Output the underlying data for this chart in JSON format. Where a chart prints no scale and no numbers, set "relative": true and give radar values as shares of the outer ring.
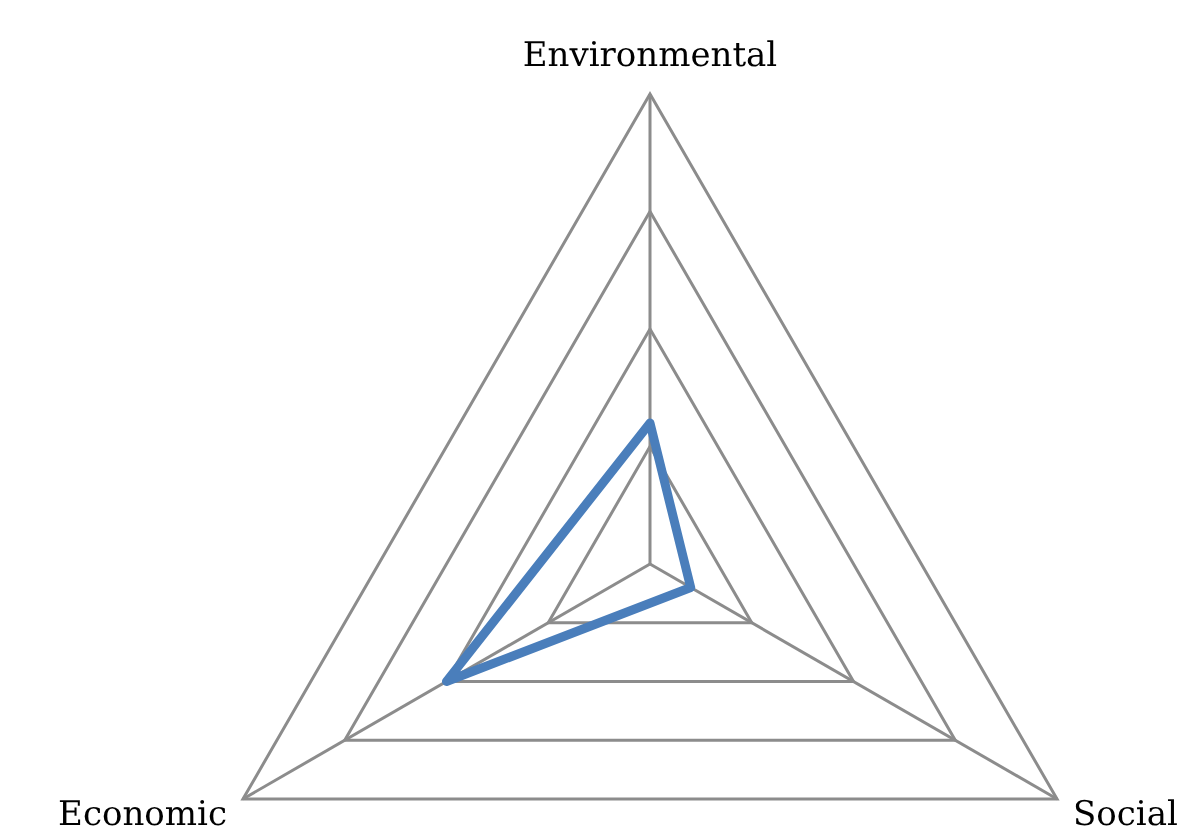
{
  "chart_data": {
    "type": "radar",
    "relative": true,
    "categories": [
      "Environmental",
      "Social",
      "Economic"
    ],
    "grid": true,
    "series": [
      {
        "color": "#4a7ebb",
        "values": [
          0.3,
          0.1,
          0.5
        ]
      }
    ]
  }
}
